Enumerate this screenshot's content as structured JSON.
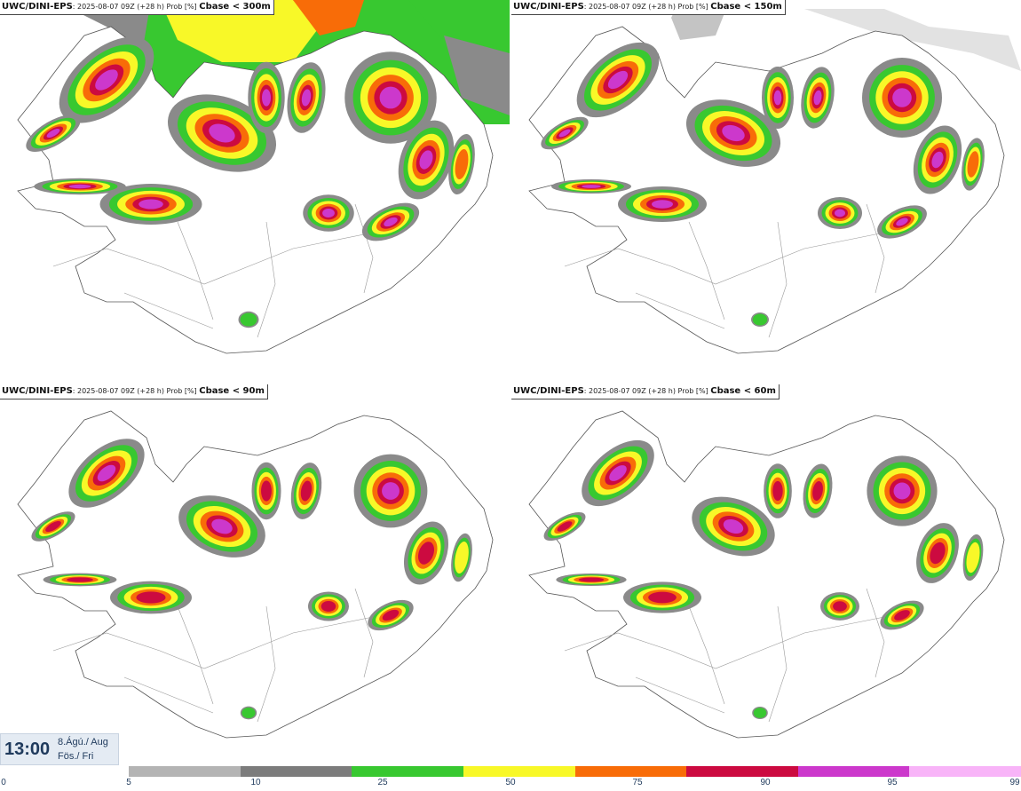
{
  "panels": [
    {
      "model": "UWC/DINI-EPS",
      "meta": ": 2025-08-07 09Z (+28 h) Prob [%] ",
      "threshold": "Cbase < 300m"
    },
    {
      "model": "UWC/DINI-EPS",
      "meta": ": 2025-08-07 09Z (+28 h) Prob [%] ",
      "threshold": "Cbase < 150m"
    },
    {
      "model": "UWC/DINI-EPS",
      "meta": ": 2025-08-07 09Z (+28 h) Prob [%] ",
      "threshold": "Cbase < 90m"
    },
    {
      "model": "UWC/DINI-EPS",
      "meta": ": 2025-08-07 09Z (+28 h) Prob [%] ",
      "threshold": "Cbase < 60m"
    }
  ],
  "valid_time": {
    "time": "13:00",
    "date_line1": "8.Ágú./ Aug",
    "date_line2": "Fös./ Fri"
  },
  "colorbar": {
    "ticks": [
      "0",
      "5",
      "10",
      "25",
      "50",
      "75",
      "90",
      "95",
      "99"
    ],
    "colors": [
      "#b4b4b4",
      "#7c7c7c",
      "#38c830",
      "#f8f828",
      "#f86c08",
      "#cc0a40",
      "#cc38cc",
      "#f8b4f8"
    ]
  },
  "layers": {
    "gray": "#8a8a8a",
    "green": "#38c830",
    "yellow": "#f8f828",
    "orange": "#f86c08",
    "red": "#cc0a40",
    "magenta": "#cc38cc",
    "pink": "#f8b4f8"
  }
}
